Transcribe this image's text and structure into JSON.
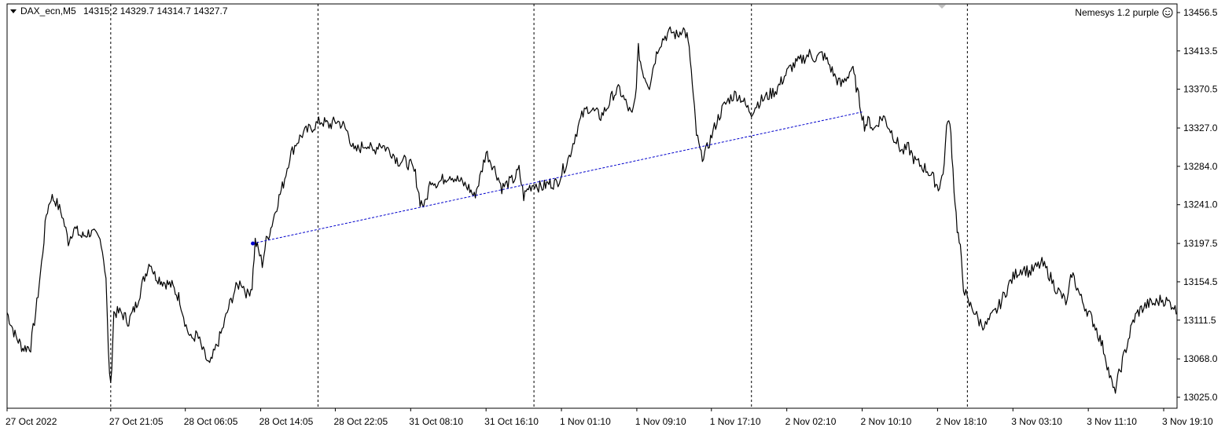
{
  "header": {
    "symbol_label": "DAX_ecn,M5",
    "ohlc": "14315.2 14329.7 14314.7 14327.7",
    "indicator_label": "Nemesys 1.2 purple",
    "indicator_icon": "smiley-icon"
  },
  "colors": {
    "background": "#ffffff",
    "price_line": "#000000",
    "trend_line": "#0000cc",
    "grid": "#000000"
  },
  "chart_data": {
    "type": "line",
    "title": "",
    "xlabel": "",
    "ylabel": "",
    "ylim": [
      13010,
      13465
    ],
    "y_ticks": [
      13025.0,
      13068.0,
      13111.5,
      13154.5,
      13197.5,
      13241.0,
      13284.0,
      13327.0,
      13370.5,
      13413.5,
      13456.5
    ],
    "y_tick_labels": [
      "13025.0",
      "13068.0",
      "13111.5",
      "13154.5",
      "13197.5",
      "13241.0",
      "13284.0",
      "13327.0",
      "13370.5",
      "13413.5",
      "13456.5"
    ],
    "x_tick_labels": [
      "27 Oct 2022",
      "27 Oct 21:05",
      "28 Oct 06:05",
      "28 Oct 14:05",
      "28 Oct 22:05",
      "31 Oct 08:10",
      "31 Oct 16:10",
      "1 Nov 01:10",
      "1 Nov 09:10",
      "1 Nov 17:10",
      "2 Nov 02:10",
      "2 Nov 10:10",
      "2 Nov 18:10",
      "3 Nov 03:10",
      "3 Nov 11:10",
      "3 Nov 19:10"
    ],
    "x_tick_index": [
      0,
      132,
      227,
      323,
      418,
      514,
      610,
      706,
      802,
      897,
      993,
      1089,
      1185,
      1281,
      1377,
      1473
    ],
    "session_separators_index": [
      132,
      396,
      671,
      948,
      1223
    ],
    "grid": false,
    "x_count": 1490,
    "series": [
      {
        "name": "",
        "points": [
          [
            0,
            13120
          ],
          [
            10,
            13095
          ],
          [
            20,
            13080
          ],
          [
            30,
            13082
          ],
          [
            38,
            13130
          ],
          [
            44,
            13175
          ],
          [
            50,
            13230
          ],
          [
            56,
            13250
          ],
          [
            62,
            13245
          ],
          [
            70,
            13230
          ],
          [
            78,
            13200
          ],
          [
            85,
            13215
          ],
          [
            95,
            13205
          ],
          [
            105,
            13210
          ],
          [
            115,
            13205
          ],
          [
            120,
            13200
          ],
          [
            126,
            13160
          ],
          [
            129,
            13075
          ],
          [
            132,
            13035
          ],
          [
            136,
            13120
          ],
          [
            145,
            13120
          ],
          [
            155,
            13110
          ],
          [
            165,
            13130
          ],
          [
            175,
            13160
          ],
          [
            182,
            13178
          ],
          [
            188,
            13162
          ],
          [
            198,
            13155
          ],
          [
            210,
            13150
          ],
          [
            220,
            13135
          ],
          [
            228,
            13105
          ],
          [
            234,
            13090
          ],
          [
            242,
            13095
          ],
          [
            250,
            13075
          ],
          [
            258,
            13060
          ],
          [
            266,
            13080
          ],
          [
            274,
            13100
          ],
          [
            282,
            13125
          ],
          [
            290,
            13145
          ],
          [
            298,
            13155
          ],
          [
            306,
            13140
          ],
          [
            312,
            13150
          ],
          [
            316,
            13200
          ],
          [
            320,
            13190
          ],
          [
            325,
            13175
          ],
          [
            330,
            13200
          ],
          [
            336,
            13215
          ],
          [
            345,
            13245
          ],
          [
            352,
            13265
          ],
          [
            360,
            13295
          ],
          [
            368,
            13310
          ],
          [
            376,
            13320
          ],
          [
            384,
            13325
          ],
          [
            392,
            13330
          ],
          [
            400,
            13335
          ],
          [
            410,
            13330
          ],
          [
            420,
            13335
          ],
          [
            428,
            13330
          ],
          [
            435,
            13320
          ],
          [
            442,
            13300
          ],
          [
            450,
            13305
          ],
          [
            458,
            13310
          ],
          [
            466,
            13300
          ],
          [
            474,
            13310
          ],
          [
            482,
            13305
          ],
          [
            490,
            13300
          ],
          [
            498,
            13290
          ],
          [
            506,
            13290
          ],
          [
            514,
            13285
          ],
          [
            520,
            13275
          ],
          [
            526,
            13245
          ],
          [
            532,
            13240
          ],
          [
            540,
            13270
          ],
          [
            548,
            13265
          ],
          [
            556,
            13270
          ],
          [
            564,
            13275
          ],
          [
            572,
            13270
          ],
          [
            580,
            13265
          ],
          [
            588,
            13260
          ],
          [
            595,
            13250
          ],
          [
            602,
            13270
          ],
          [
            610,
            13300
          ],
          [
            616,
            13290
          ],
          [
            624,
            13275
          ],
          [
            630,
            13260
          ],
          [
            638,
            13265
          ],
          [
            646,
            13270
          ],
          [
            652,
            13280
          ],
          [
            658,
            13250
          ],
          [
            664,
            13260
          ],
          [
            672,
            13265
          ],
          [
            680,
            13260
          ],
          [
            690,
            13265
          ],
          [
            700,
            13265
          ],
          [
            708,
            13280
          ],
          [
            716,
            13295
          ],
          [
            724,
            13320
          ],
          [
            732,
            13340
          ],
          [
            740,
            13350
          ],
          [
            748,
            13345
          ],
          [
            756,
            13340
          ],
          [
            764,
            13350
          ],
          [
            772,
            13365
          ],
          [
            780,
            13370
          ],
          [
            788,
            13355
          ],
          [
            796,
            13340
          ],
          [
            800,
            13360
          ],
          [
            804,
            13415
          ],
          [
            808,
            13395
          ],
          [
            812,
            13385
          ],
          [
            818,
            13375
          ],
          [
            824,
            13400
          ],
          [
            830,
            13420
          ],
          [
            838,
            13430
          ],
          [
            846,
            13435
          ],
          [
            854,
            13430
          ],
          [
            860,
            13440
          ],
          [
            866,
            13430
          ],
          [
            870,
            13405
          ],
          [
            874,
            13360
          ],
          [
            878,
            13320
          ],
          [
            884,
            13295
          ],
          [
            890,
            13300
          ],
          [
            896,
            13315
          ],
          [
            904,
            13335
          ],
          [
            912,
            13350
          ],
          [
            920,
            13360
          ],
          [
            928,
            13365
          ],
          [
            936,
            13360
          ],
          [
            942,
            13350
          ],
          [
            948,
            13345
          ],
          [
            956,
            13355
          ],
          [
            964,
            13360
          ],
          [
            972,
            13365
          ],
          [
            980,
            13370
          ],
          [
            990,
            13385
          ],
          [
            998,
            13395
          ],
          [
            1006,
            13400
          ],
          [
            1014,
            13405
          ],
          [
            1022,
            13410
          ],
          [
            1030,
            13405
          ],
          [
            1038,
            13410
          ],
          [
            1046,
            13400
          ],
          [
            1054,
            13385
          ],
          [
            1062,
            13375
          ],
          [
            1070,
            13385
          ],
          [
            1076,
            13395
          ],
          [
            1080,
            13380
          ],
          [
            1086,
            13355
          ],
          [
            1092,
            13330
          ],
          [
            1098,
            13335
          ],
          [
            1104,
            13325
          ],
          [
            1110,
            13335
          ],
          [
            1116,
            13340
          ],
          [
            1122,
            13330
          ],
          [
            1128,
            13320
          ],
          [
            1134,
            13310
          ],
          [
            1140,
            13300
          ],
          [
            1148,
            13305
          ],
          [
            1156,
            13290
          ],
          [
            1164,
            13285
          ],
          [
            1172,
            13280
          ],
          [
            1180,
            13270
          ],
          [
            1186,
            13260
          ],
          [
            1192,
            13275
          ],
          [
            1198,
            13340
          ],
          [
            1202,
            13320
          ],
          [
            1206,
            13260
          ],
          [
            1210,
            13215
          ],
          [
            1214,
            13190
          ],
          [
            1218,
            13150
          ],
          [
            1224,
            13130
          ],
          [
            1230,
            13125
          ],
          [
            1238,
            13110
          ],
          [
            1246,
            13105
          ],
          [
            1254,
            13115
          ],
          [
            1262,
            13125
          ],
          [
            1270,
            13140
          ],
          [
            1278,
            13155
          ],
          [
            1286,
            13165
          ],
          [
            1294,
            13170
          ],
          [
            1302,
            13165
          ],
          [
            1310,
            13170
          ],
          [
            1318,
            13175
          ],
          [
            1326,
            13165
          ],
          [
            1334,
            13150
          ],
          [
            1342,
            13140
          ],
          [
            1350,
            13130
          ],
          [
            1356,
            13165
          ],
          [
            1362,
            13150
          ],
          [
            1368,
            13135
          ],
          [
            1374,
            13125
          ],
          [
            1380,
            13115
          ],
          [
            1386,
            13105
          ],
          [
            1392,
            13090
          ],
          [
            1398,
            13075
          ],
          [
            1404,
            13050
          ],
          [
            1410,
            13030
          ],
          [
            1416,
            13050
          ],
          [
            1422,
            13070
          ],
          [
            1428,
            13090
          ],
          [
            1434,
            13110
          ],
          [
            1440,
            13120
          ],
          [
            1446,
            13125
          ],
          [
            1454,
            13130
          ],
          [
            1462,
            13130
          ],
          [
            1470,
            13135
          ],
          [
            1478,
            13132
          ],
          [
            1486,
            13128
          ],
          [
            1489,
            13118
          ]
        ]
      }
    ],
    "trend_line": {
      "from": [
        313,
        13197.5
      ],
      "to": [
        1089,
        13345
      ]
    }
  }
}
